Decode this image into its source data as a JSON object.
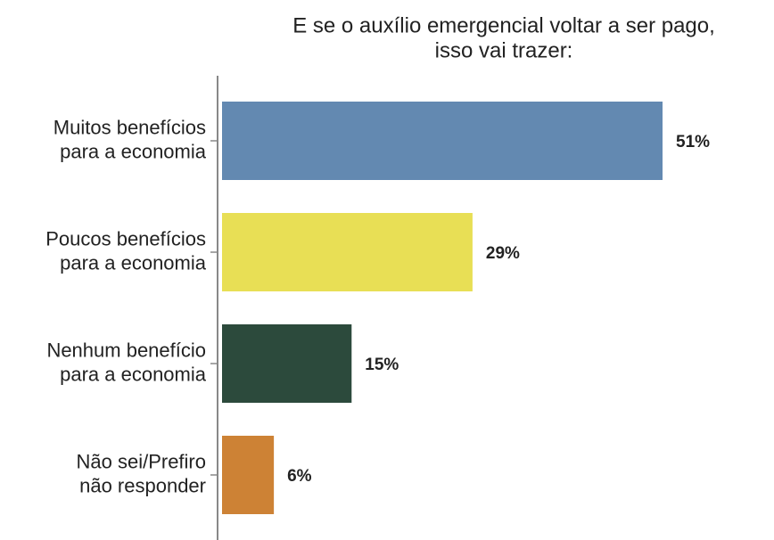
{
  "chart_data": {
    "type": "bar",
    "orientation": "horizontal",
    "title": [
      "E se o auxílio emergencial voltar a ser pago,",
      "isso vai trazer:"
    ],
    "categories": [
      [
        "Muitos benefícios",
        "para a economia"
      ],
      [
        "Poucos benefícios",
        "para a economia"
      ],
      [
        "Nenhum benefício",
        "para a economia"
      ],
      [
        "Não sei/Prefiro",
        "não responder"
      ]
    ],
    "values": [
      51,
      29,
      15,
      6
    ],
    "value_labels": [
      "51%",
      "29%",
      "15%",
      "6%"
    ],
    "colors": [
      "#6389b1",
      "#e8df55",
      "#2c4a3c",
      "#cd8235"
    ]
  }
}
